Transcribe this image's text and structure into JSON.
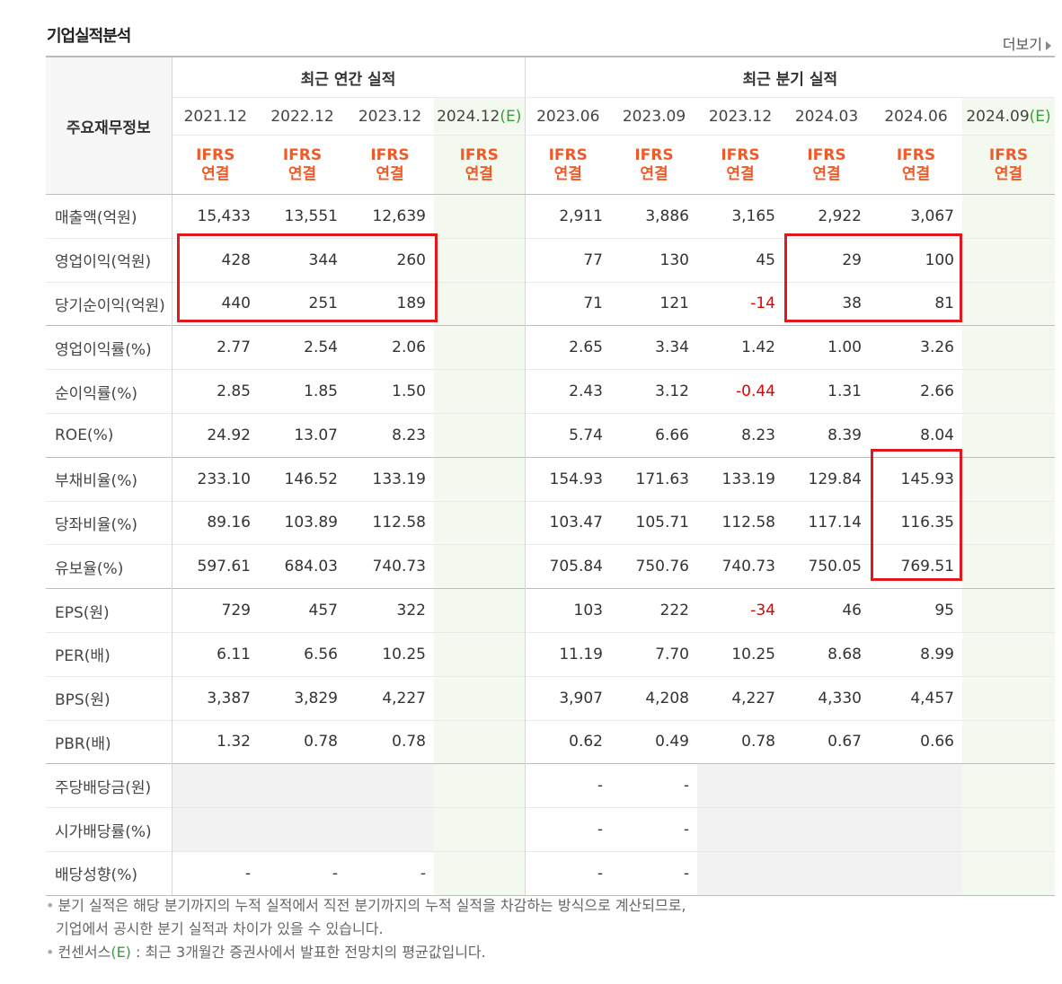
{
  "title": "기업실적분석",
  "more_label": "더보기",
  "header": {
    "row_header": "주요재무정보",
    "annual_group": "최근 연간 실적",
    "quarter_group": "최근 분기 실적",
    "periods": [
      "2021.12",
      "2022.12",
      "2023.12",
      "2024.12",
      "2023.06",
      "2023.09",
      "2023.12",
      "2024.03",
      "2024.06",
      "2024.09"
    ],
    "estimate_suffix": "(E)",
    "ifrs_top": "IFRS",
    "ifrs_bottom": "연결"
  },
  "rows": [
    {
      "label": "매출액(억원)",
      "values": [
        "15,433",
        "13,551",
        "12,639",
        "",
        "2,911",
        "3,886",
        "3,165",
        "2,922",
        "3,067",
        ""
      ]
    },
    {
      "label": "영업이익(억원)",
      "values": [
        "428",
        "344",
        "260",
        "",
        "77",
        "130",
        "45",
        "29",
        "100",
        ""
      ]
    },
    {
      "label": "당기순이익(억원)",
      "values": [
        "440",
        "251",
        "189",
        "",
        "71",
        "121",
        "-14",
        "38",
        "81",
        ""
      ]
    },
    {
      "label": "영업이익률(%)",
      "values": [
        "2.77",
        "2.54",
        "2.06",
        "",
        "2.65",
        "3.34",
        "1.42",
        "1.00",
        "3.26",
        ""
      ]
    },
    {
      "label": "순이익률(%)",
      "values": [
        "2.85",
        "1.85",
        "1.50",
        "",
        "2.43",
        "3.12",
        "-0.44",
        "1.31",
        "2.66",
        ""
      ]
    },
    {
      "label": "ROE(%)",
      "values": [
        "24.92",
        "13.07",
        "8.23",
        "",
        "5.74",
        "6.66",
        "8.23",
        "8.39",
        "8.04",
        ""
      ]
    },
    {
      "label": "부채비율(%)",
      "values": [
        "233.10",
        "146.52",
        "133.19",
        "",
        "154.93",
        "171.63",
        "133.19",
        "129.84",
        "145.93",
        ""
      ]
    },
    {
      "label": "당좌비율(%)",
      "values": [
        "89.16",
        "103.89",
        "112.58",
        "",
        "103.47",
        "105.71",
        "112.58",
        "117.14",
        "116.35",
        ""
      ]
    },
    {
      "label": "유보율(%)",
      "values": [
        "597.61",
        "684.03",
        "740.73",
        "",
        "705.84",
        "750.76",
        "740.73",
        "750.05",
        "769.51",
        ""
      ]
    },
    {
      "label": "EPS(원)",
      "values": [
        "729",
        "457",
        "322",
        "",
        "103",
        "222",
        "-34",
        "46",
        "95",
        ""
      ]
    },
    {
      "label": "PER(배)",
      "values": [
        "6.11",
        "6.56",
        "10.25",
        "",
        "11.19",
        "7.70",
        "10.25",
        "8.68",
        "8.99",
        ""
      ]
    },
    {
      "label": "BPS(원)",
      "values": [
        "3,387",
        "3,829",
        "4,227",
        "",
        "3,907",
        "4,208",
        "4,227",
        "4,330",
        "4,457",
        ""
      ]
    },
    {
      "label": "PBR(배)",
      "values": [
        "1.32",
        "0.78",
        "0.78",
        "",
        "0.62",
        "0.49",
        "0.78",
        "0.67",
        "0.66",
        ""
      ]
    },
    {
      "label": "주당배당금(원)",
      "values": [
        "",
        "",
        "",
        "",
        "-",
        "-",
        "",
        "",
        "",
        ""
      ]
    },
    {
      "label": "시가배당률(%)",
      "values": [
        "",
        "",
        "",
        "",
        "-",
        "-",
        "",
        "",
        "",
        ""
      ]
    },
    {
      "label": "배당성향(%)",
      "values": [
        "-",
        "-",
        "-",
        "",
        "-",
        "-",
        "",
        "",
        "",
        ""
      ]
    }
  ],
  "notes": {
    "line1": "분기 실적은 해당 분기까지의 누적 실적에서 직전 분기까지의 누적 실적을 차감하는 방식으로 계산되므로,",
    "line2": "기업에서 공시한 분기 실적과 차이가 있을 수 있습니다.",
    "line3_prefix": "컨센서스",
    "line3_e": "(E)",
    "line3_rest": " : 최근 3개월간 증권사에서 발표한 전망치의 평균값입니다."
  },
  "colors": {
    "accent_orange": "#f05a28",
    "estimate_green": "#3a9d3a",
    "negative_red": "#e00000",
    "highlight_red": "#e0191c"
  }
}
